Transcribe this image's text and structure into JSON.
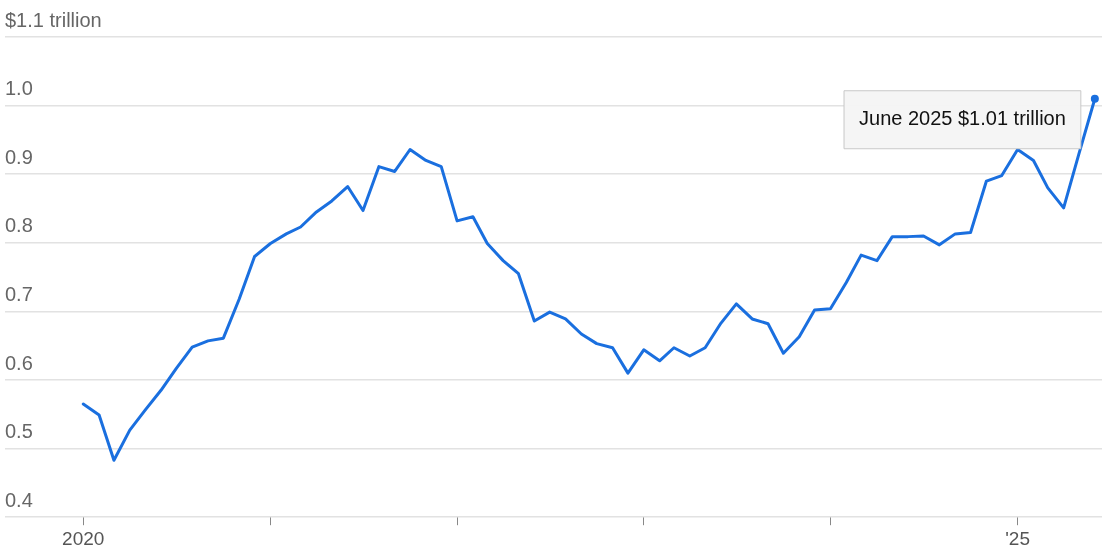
{
  "chart_data": {
    "type": "line",
    "x": [
      "2020-01",
      "2020-02",
      "2020-03",
      "2020-04",
      "2020-05",
      "2020-06",
      "2020-07",
      "2020-08",
      "2020-09",
      "2020-10",
      "2020-11",
      "2020-12",
      "2021-01",
      "2021-02",
      "2021-03",
      "2021-04",
      "2021-05",
      "2021-06",
      "2021-07",
      "2021-08",
      "2021-09",
      "2021-10",
      "2021-11",
      "2021-12",
      "2022-01",
      "2022-02",
      "2022-03",
      "2022-04",
      "2022-05",
      "2022-06",
      "2022-07",
      "2022-08",
      "2022-09",
      "2022-10",
      "2022-11",
      "2022-12",
      "2023-01",
      "2023-02",
      "2023-03",
      "2023-04",
      "2023-05",
      "2023-06",
      "2023-07",
      "2023-08",
      "2023-09",
      "2023-10",
      "2023-11",
      "2023-12",
      "2024-01",
      "2024-02",
      "2024-03",
      "2024-04",
      "2024-05",
      "2024-06",
      "2024-07",
      "2024-08",
      "2024-09",
      "2024-10",
      "2024-11",
      "2024-12",
      "2025-01",
      "2025-02",
      "2025-03",
      "2025-04",
      "2025-05",
      "2025-06"
    ],
    "series": [
      {
        "color": "#1a6fdf",
        "values": [
          0.565,
          0.549,
          0.483,
          0.527,
          0.556,
          0.585,
          0.617,
          0.648,
          0.657,
          0.661,
          0.718,
          0.78,
          0.799,
          0.813,
          0.823,
          0.845,
          0.861,
          0.882,
          0.847,
          0.911,
          0.904,
          0.936,
          0.92,
          0.911,
          0.832,
          0.838,
          0.799,
          0.774,
          0.755,
          0.686,
          0.699,
          0.689,
          0.667,
          0.653,
          0.647,
          0.61,
          0.644,
          0.628,
          0.647,
          0.635,
          0.647,
          0.683,
          0.711,
          0.689,
          0.682,
          0.639,
          0.663,
          0.702,
          0.704,
          0.742,
          0.782,
          0.774,
          0.809,
          0.809,
          0.81,
          0.797,
          0.813,
          0.815,
          0.89,
          0.898,
          0.936,
          0.92,
          0.88,
          0.851,
          0.93,
          1.01
        ]
      }
    ],
    "xlim": [
      "2019-08-01",
      "2025-06-15"
    ],
    "xticks": [
      {
        "value": "2020-01",
        "label": "2020"
      },
      {
        "value": "2021-01",
        "label": null
      },
      {
        "value": "2022-01",
        "label": null
      },
      {
        "value": "2023-01",
        "label": null
      },
      {
        "value": "2024-01",
        "label": null
      },
      {
        "value": "2025-01",
        "label": "'25"
      }
    ],
    "ylim": [
      0.4,
      1.1
    ],
    "yticks": [
      0.4,
      0.5,
      0.6,
      0.7,
      0.8,
      0.9,
      {
        "value": 1.0,
        "label": "1.0"
      },
      {
        "value": 1.1,
        "label": "$1.1 trillion"
      }
    ],
    "grid": "y",
    "legend": false,
    "marker": "none",
    "line_style": "solid",
    "annotations": [
      {
        "text": "June 2025 $1.01 trillion",
        "x": "2025-06",
        "y": 1.01
      }
    ]
  }
}
